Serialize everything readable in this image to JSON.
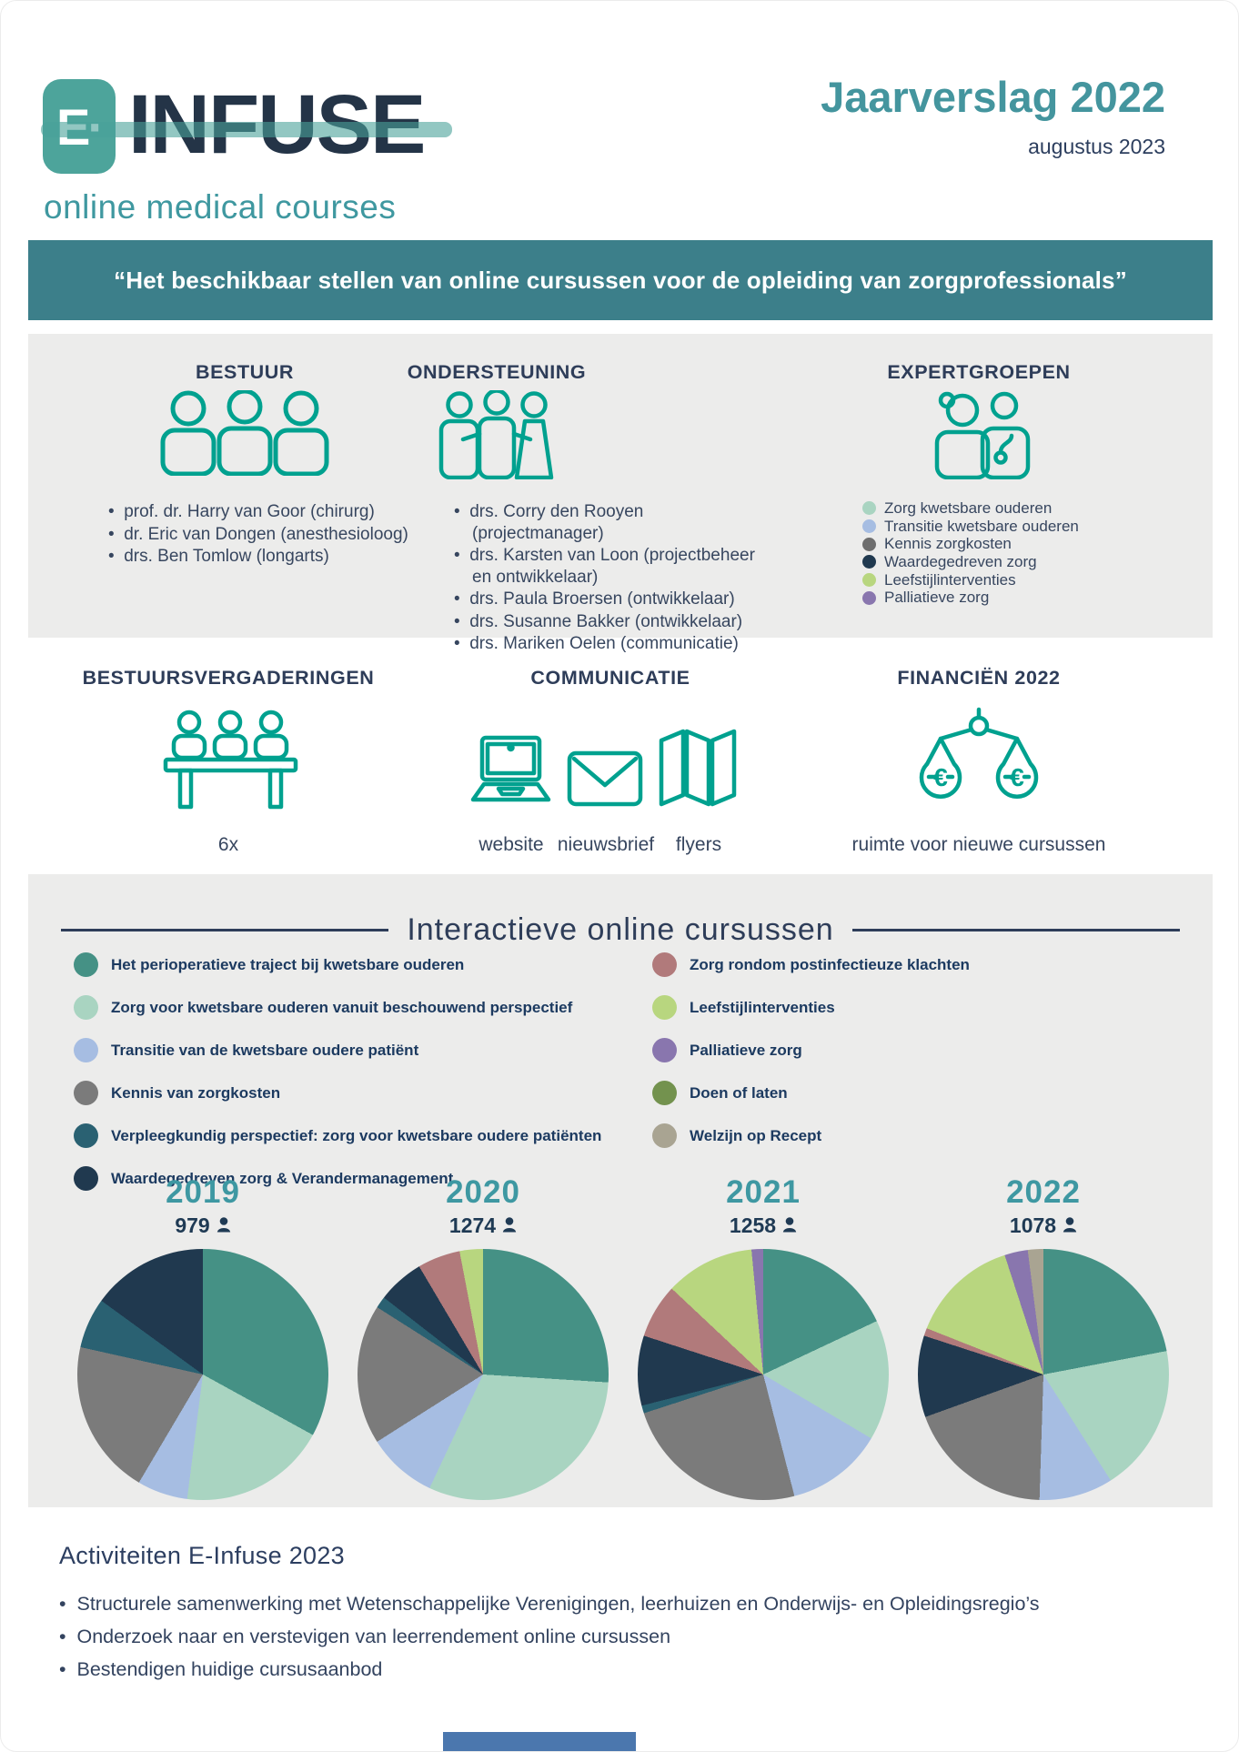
{
  "header": {
    "logo_mark": "E·",
    "logo_name": "INFUSE",
    "logo_tagline": "online medical courses",
    "report_title": "Jaarverslag 2022",
    "report_date": "augustus 2023"
  },
  "banner": {
    "quote": "“Het beschikbaar stellen van online cursussen voor de opleiding van zorgprofessionals”"
  },
  "colors": {
    "accent_teal": "#3e98a2",
    "banner_teal": "#3c7f8a",
    "icon_teal": "#00a18f",
    "navy": "#20394f",
    "section_bg": "#ececeb",
    "footer_bar": "#4b77ae"
  },
  "icons": {
    "bestuur": "three-people-icon",
    "ondersteuning": "team-people-icon",
    "expertgroepen": "medical-experts-icon",
    "bestuursvergaderingen": "meeting-table-icon",
    "communicatie": [
      "laptop-icon",
      "envelope-icon",
      "flyers-icon"
    ],
    "financien": "balance-scale-icon",
    "count_marker": "person-icon"
  },
  "org": {
    "bestuur": {
      "title": "BESTUUR",
      "members": [
        "prof. dr. Harry van Goor (chirurg)",
        "dr. Eric van Dongen (anesthesioloog)",
        "drs. Ben Tomlow (longarts)"
      ]
    },
    "ondersteuning": {
      "title": "ONDERSTEUNING",
      "members": [
        "drs. Corry den Rooyen (projectmanager)",
        "drs. Karsten van Loon (projectbeheer en ontwikkelaar)",
        "drs. Paula Broersen (ontwikkelaar)",
        "drs. Susanne Bakker (ontwikkelaar)",
        "drs. Mariken Oelen (communicatie)"
      ]
    },
    "expertgroepen": {
      "title": "EXPERTGROEPEN",
      "groups": [
        {
          "label": "Zorg kwetsbare ouderen",
          "color": "#a9d4c1"
        },
        {
          "label": "Transitie kwetsbare ouderen",
          "color": "#a6bde2"
        },
        {
          "label": "Kennis zorgkosten",
          "color": "#6e6e6e"
        },
        {
          "label": "Waardegedreven zorg",
          "color": "#20394f"
        },
        {
          "label": "Leefstijlinterventies",
          "color": "#b8d67f"
        },
        {
          "label": "Palliatieve zorg",
          "color": "#8976ae"
        }
      ]
    }
  },
  "activities_row": {
    "bestuursvergaderingen": {
      "title": "BESTUURSVERGADERINGEN",
      "caption": "6x"
    },
    "communicatie": {
      "title": "COMMUNICATIE",
      "channels": [
        "website",
        "nieuwsbrief",
        "flyers"
      ]
    },
    "financien": {
      "title": "FINANCIËN 2022",
      "caption": "ruimte voor nieuwe cursussen"
    }
  },
  "cursussen": {
    "title": "Interactieve online cursussen",
    "legend_left": [
      {
        "label": "Het perioperatieve traject bij kwetsbare ouderen",
        "color": "#459185"
      },
      {
        "label": "Zorg voor kwetsbare ouderen vanuit beschouwend perspectief",
        "color": "#a9d4c1"
      },
      {
        "label": "Transitie van de kwetsbare oudere patiënt",
        "color": "#a6bde2"
      },
      {
        "label": "Kennis van zorgkosten",
        "color": "#7b7b7b"
      },
      {
        "label": "Verpleegkundig perspectief: zorg voor kwetsbare oudere patiënten",
        "color": "#2a6172"
      },
      {
        "label": "Waardegedreven zorg & Verandermanagement",
        "color": "#20394f"
      }
    ],
    "legend_right": [
      {
        "label": "Zorg rondom postinfectieuze klachten",
        "color": "#b17a7b"
      },
      {
        "label": "Leefstijlinterventies",
        "color": "#b8d67f"
      },
      {
        "label": "Palliatieve zorg",
        "color": "#8976ae"
      },
      {
        "label": "Doen of laten",
        "color": "#73924e"
      },
      {
        "label": "Welzijn op Recept",
        "color": "#a9a492"
      }
    ]
  },
  "chart_data": {
    "type": "pie",
    "title": "Interactieve online cursussen",
    "count_icon": "person-icon",
    "pies": [
      {
        "year": "2019",
        "total": 979,
        "slices": [
          {
            "label": "Het perioperatieve traject bij kwetsbare ouderen",
            "color": "#459185",
            "pct": 33
          },
          {
            "label": "Zorg voor kwetsbare ouderen vanuit beschouwend perspectief",
            "color": "#a9d4c1",
            "pct": 19
          },
          {
            "label": "Transitie van de kwetsbare oudere patiënt",
            "color": "#a6bde2",
            "pct": 6.5
          },
          {
            "label": "Kennis van zorgkosten",
            "color": "#7b7b7b",
            "pct": 20
          },
          {
            "label": "Verpleegkundig perspectief: zorg voor kwetsbare oudere patiënten",
            "color": "#2a6172",
            "pct": 6.5
          },
          {
            "label": "Waardegedreven zorg & Verandermanagement",
            "color": "#20394f",
            "pct": 15
          }
        ]
      },
      {
        "year": "2020",
        "total": 1274,
        "slices": [
          {
            "label": "Het perioperatieve traject bij kwetsbare ouderen",
            "color": "#459185",
            "pct": 26
          },
          {
            "label": "Zorg voor kwetsbare ouderen vanuit beschouwend perspectief",
            "color": "#a9d4c1",
            "pct": 31
          },
          {
            "label": "Transitie van de kwetsbare oudere patiënt",
            "color": "#a6bde2",
            "pct": 9
          },
          {
            "label": "Kennis van zorgkosten",
            "color": "#7b7b7b",
            "pct": 18
          },
          {
            "label": "Verpleegkundig perspectief: zorg voor kwetsbare oudere patiënten",
            "color": "#2a6172",
            "pct": 1.5
          },
          {
            "label": "Waardegedreven zorg & Verandermanagement",
            "color": "#20394f",
            "pct": 6
          },
          {
            "label": "Zorg rondom postinfectieuze klachten",
            "color": "#b17a7b",
            "pct": 5.5
          },
          {
            "label": "Leefstijlinterventies",
            "color": "#b8d67f",
            "pct": 3
          }
        ]
      },
      {
        "year": "2021",
        "total": 1258,
        "slices": [
          {
            "label": "Het perioperatieve traject bij kwetsbare ouderen",
            "color": "#459185",
            "pct": 18
          },
          {
            "label": "Zorg voor kwetsbare ouderen vanuit beschouwend perspectief",
            "color": "#a9d4c1",
            "pct": 15.5
          },
          {
            "label": "Transitie van de kwetsbare oudere patiënt",
            "color": "#a6bde2",
            "pct": 12.5
          },
          {
            "label": "Kennis van zorgkosten",
            "color": "#7b7b7b",
            "pct": 24
          },
          {
            "label": "Verpleegkundig perspectief: zorg voor kwetsbare oudere patiënten",
            "color": "#2a6172",
            "pct": 1
          },
          {
            "label": "Waardegedreven zorg & Verandermanagement",
            "color": "#20394f",
            "pct": 9
          },
          {
            "label": "Zorg rondom postinfectieuze klachten",
            "color": "#b17a7b",
            "pct": 7
          },
          {
            "label": "Leefstijlinterventies",
            "color": "#b8d67f",
            "pct": 11.5
          },
          {
            "label": "Palliatieve zorg",
            "color": "#8976ae",
            "pct": 1.5
          }
        ]
      },
      {
        "year": "2022",
        "total": 1078,
        "slices": [
          {
            "label": "Het perioperatieve traject bij kwetsbare ouderen",
            "color": "#459185",
            "pct": 22
          },
          {
            "label": "Zorg voor kwetsbare ouderen vanuit beschouwend perspectief",
            "color": "#a9d4c1",
            "pct": 19
          },
          {
            "label": "Transitie van de kwetsbare oudere patiënt",
            "color": "#a6bde2",
            "pct": 9.5
          },
          {
            "label": "Kennis van zorgkosten",
            "color": "#7b7b7b",
            "pct": 19
          },
          {
            "label": "Waardegedreven zorg & Verandermanagement",
            "color": "#20394f",
            "pct": 10.5
          },
          {
            "label": "Zorg rondom postinfectieuze klachten",
            "color": "#b17a7b",
            "pct": 1
          },
          {
            "label": "Leefstijlinterventies",
            "color": "#b8d67f",
            "pct": 14
          },
          {
            "label": "Palliatieve zorg",
            "color": "#8976ae",
            "pct": 3
          },
          {
            "label": "Welzijn op Recept",
            "color": "#a9a492",
            "pct": 2
          }
        ]
      }
    ]
  },
  "activiteiten": {
    "title": "Activiteiten E-Infuse 2023",
    "bullets": [
      "Structurele samenwerking met Wetenschappelijke Verenigingen, leerhuizen en Onderwijs- en Opleidingsregio’s",
      "Onderzoek naar en verstevigen van leerrendement online cursussen",
      "Bestendigen huidige cursusaanbod"
    ]
  }
}
